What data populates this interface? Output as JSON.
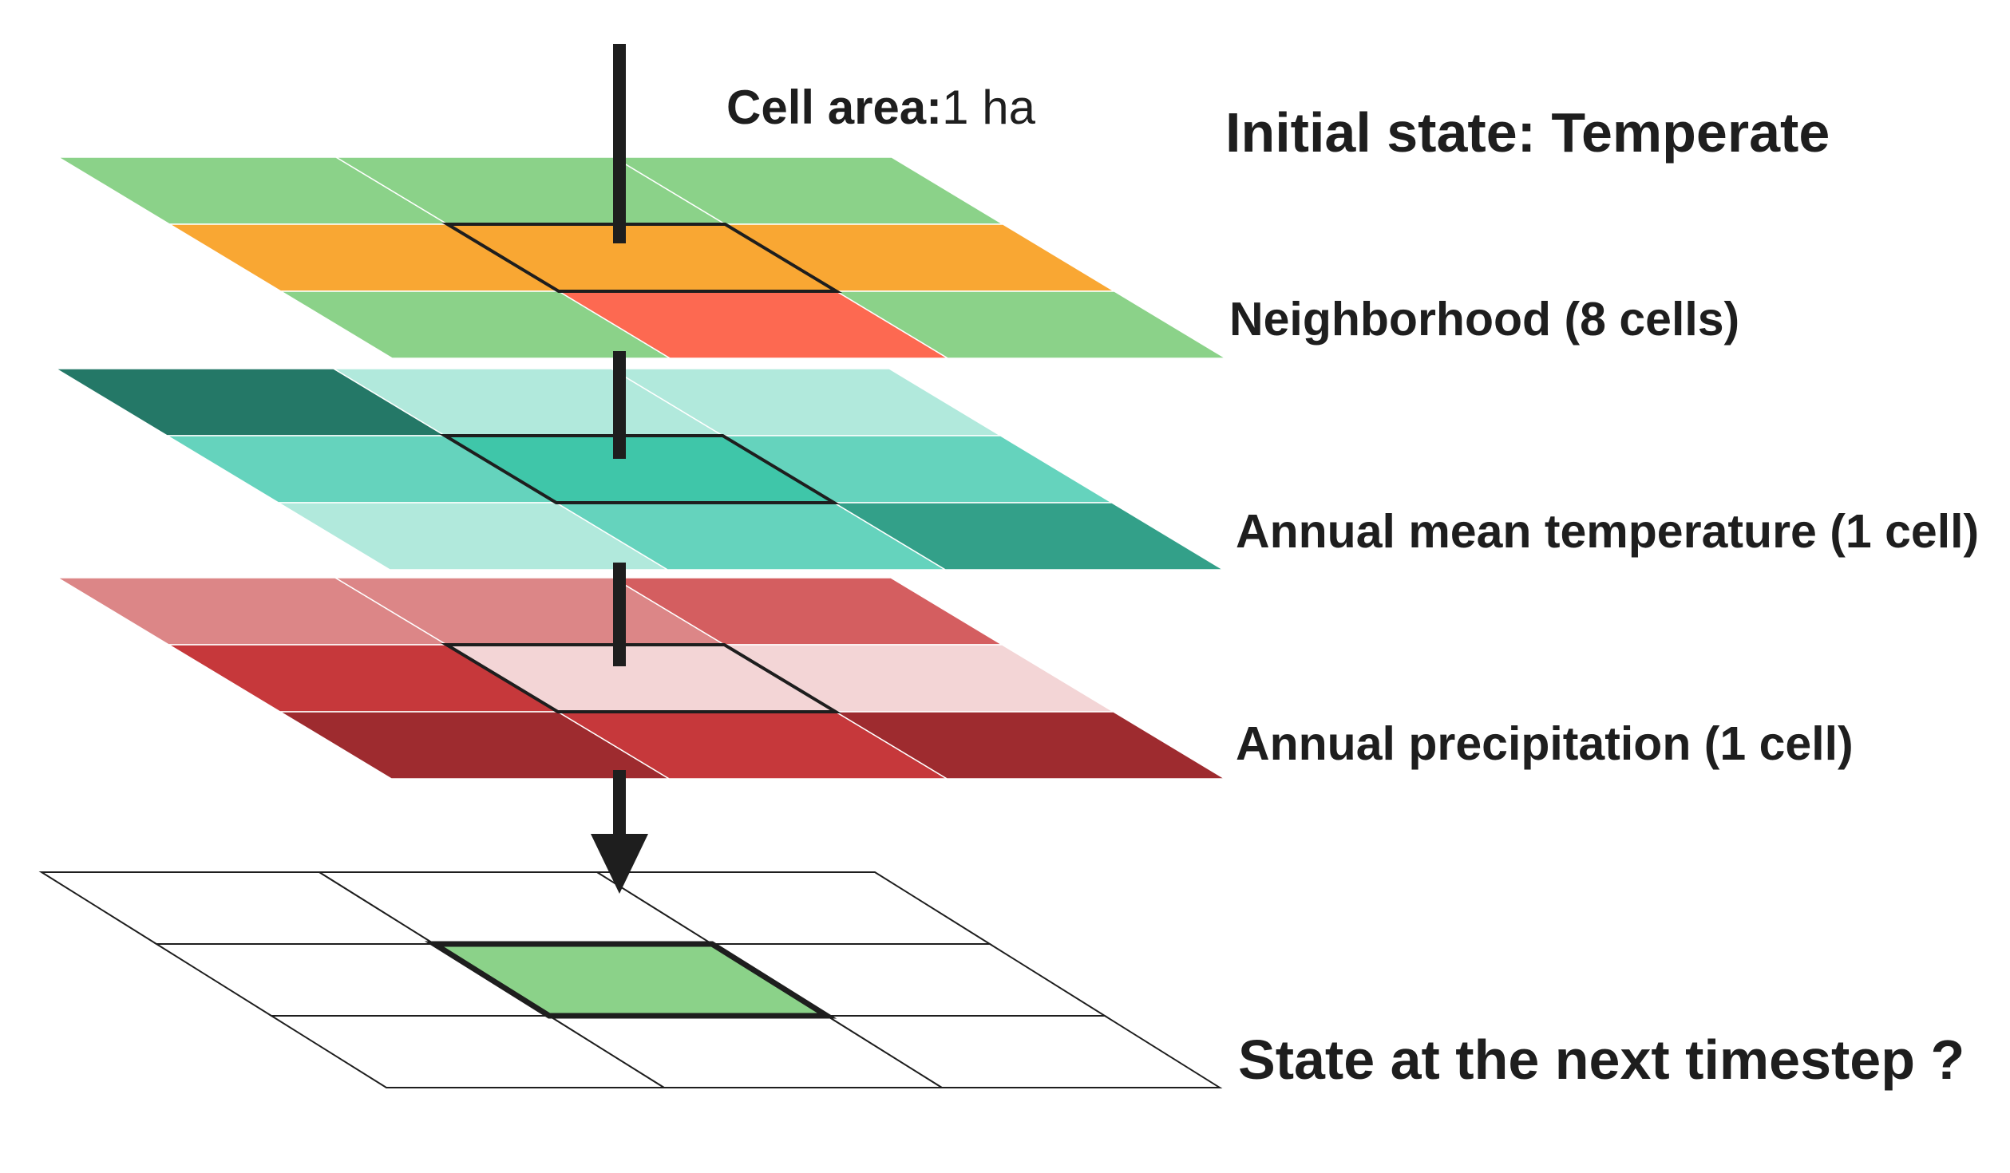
{
  "labels": {
    "cell_area_label": "Cell area:",
    "cell_area_value": "1 ha",
    "initial_state": "Initial state: Temperate",
    "neighborhood": "Neighborhood (8 cells)",
    "temperature": "Annual mean temperature (1 cell)",
    "precipitation": "Annual precipitation (1 cell)",
    "next_state": "State at the next timestep ?"
  },
  "layers": [
    {
      "name": "state-layer",
      "cells": [
        [
          "#8bd289",
          "#8bd289",
          "#8bd289"
        ],
        [
          "#f9a733",
          "#f9a733",
          "#f9a733"
        ],
        [
          "#8bd289",
          "#fd6951",
          "#8bd289"
        ]
      ]
    },
    {
      "name": "temperature-layer",
      "cells": [
        [
          "#247867",
          "#b1e9dc",
          "#b1e9dc"
        ],
        [
          "#65d3bd",
          "#3fc6a9",
          "#65d3bd"
        ],
        [
          "#b1e9dc",
          "#65d3bd",
          "#33a089"
        ]
      ]
    },
    {
      "name": "precipitation-layer",
      "cells": [
        [
          "#dc8687",
          "#dc8687",
          "#d45e60"
        ],
        [
          "#c6383b",
          "#f3d5d6",
          "#f3d5d6"
        ],
        [
          "#9e2b2f",
          "#c6383b",
          "#9e2b2f"
        ]
      ]
    },
    {
      "name": "next-state-layer",
      "cells": [
        [
          "#ffffff",
          "#ffffff",
          "#ffffff"
        ],
        [
          "#ffffff",
          "#8bd289",
          "#ffffff"
        ],
        [
          "#ffffff",
          "#ffffff",
          "#ffffff"
        ]
      ]
    }
  ]
}
